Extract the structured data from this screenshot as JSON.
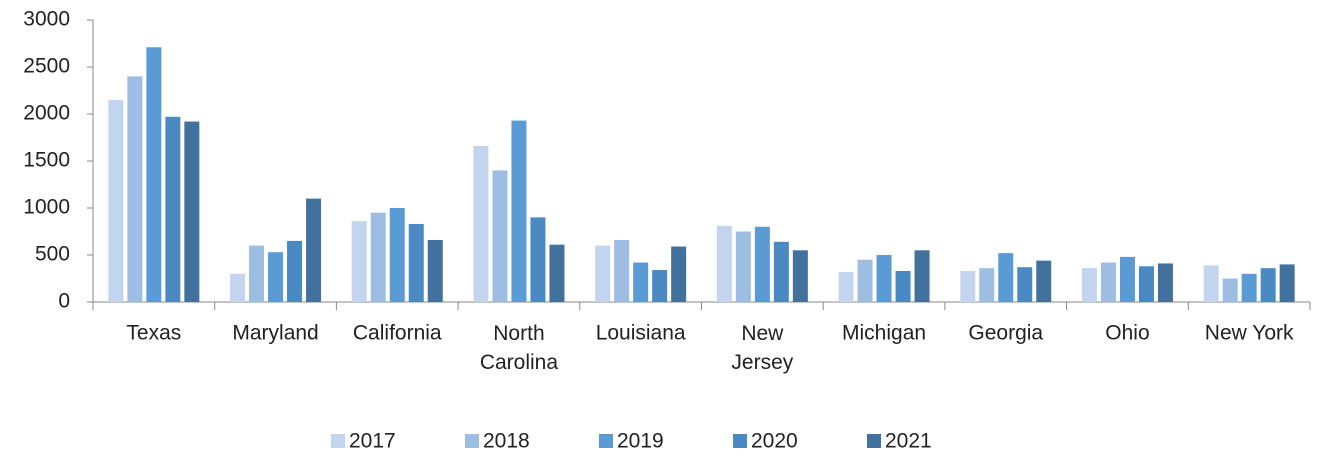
{
  "chart_data": {
    "type": "bar",
    "categories": [
      "Texas",
      "Maryland",
      "California",
      "North\nCarolina",
      "Louisiana",
      "New\nJersey",
      "Michigan",
      "Georgia",
      "Ohio",
      "New York"
    ],
    "series": [
      {
        "name": "2017",
        "color": "#c3d5ee",
        "values": [
          2150,
          300,
          860,
          1660,
          600,
          810,
          320,
          330,
          360,
          390
        ]
      },
      {
        "name": "2018",
        "color": "#9dbde3",
        "values": [
          2400,
          600,
          950,
          1400,
          660,
          750,
          450,
          360,
          420,
          250
        ]
      },
      {
        "name": "2019",
        "color": "#5b9bd5",
        "values": [
          2710,
          530,
          1000,
          1930,
          420,
          800,
          500,
          520,
          480,
          300
        ]
      },
      {
        "name": "2020",
        "color": "#4a89c2",
        "values": [
          1970,
          650,
          830,
          900,
          340,
          640,
          330,
          370,
          380,
          360
        ]
      },
      {
        "name": "2021",
        "color": "#41719c",
        "values": [
          1920,
          1100,
          660,
          610,
          590,
          550,
          550,
          440,
          410,
          400
        ]
      }
    ],
    "ylim": [
      0,
      3000
    ],
    "yticks": [
      0,
      500,
      1000,
      1500,
      2000,
      2500,
      3000
    ],
    "legend": "bottom"
  }
}
